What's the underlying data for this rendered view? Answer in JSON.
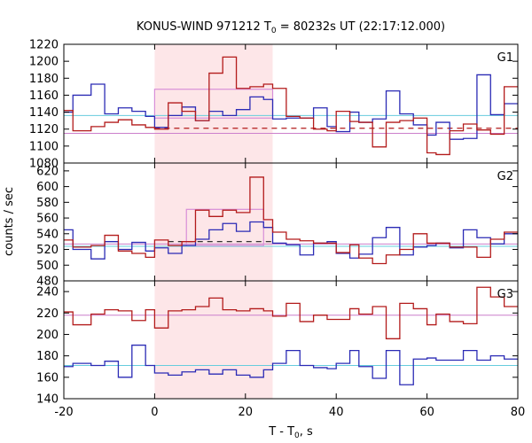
{
  "chart_data": {
    "type": "line",
    "title": "KONUS-WIND 971212 T",
    "title_sub": "0",
    "title_rest": " = 80232s UT (22:17:12.000)",
    "xlabel": "T - T",
    "xlabel_sub": "0",
    "xlabel_rest": ", s",
    "ylabel": "counts / sec",
    "xlim": [
      -20,
      80
    ],
    "x_ticks": [
      -20,
      0,
      20,
      40,
      60,
      80
    ],
    "highlight_interval": [
      0,
      26
    ],
    "bin_edges": [
      -20,
      -18,
      -14,
      -11,
      -8,
      -5,
      -2,
      0,
      3,
      6,
      9,
      12,
      15,
      18,
      21,
      24,
      26,
      29,
      32,
      35,
      38,
      40,
      43,
      45,
      48,
      51,
      54,
      57,
      60,
      62,
      65,
      68,
      71,
      74,
      77,
      80
    ],
    "panels": [
      {
        "label": "G1",
        "ylim": [
          1080,
          1220
        ],
        "y_ticks": [
          1080,
          1100,
          1120,
          1140,
          1160,
          1180,
          1200,
          1220
        ],
        "series": [
          {
            "color": "#2b2bb5",
            "values": [
              1140,
              1160,
              1173,
              1138,
              1145,
              1141,
              1135,
              1122,
              1136,
              1146,
              1130,
              1141,
              1136,
              1143,
              1158,
              1155,
              1132,
              1133,
              1133,
              1145,
              1123,
              1117,
              1140,
              1128,
              1132,
              1165,
              1138,
              1125,
              1113,
              1128,
              1108,
              1109,
              1184,
              1137,
              1150
            ]
          },
          {
            "color": "#b31b1b",
            "values": [
              1142,
              1118,
              1123,
              1128,
              1131,
              1125,
              1122,
              1120,
              1151,
              1141,
              1130,
              1186,
              1205,
              1168,
              1170,
              1173,
              1168,
              1135,
              1133,
              1120,
              1118,
              1141,
              1129,
              1128,
              1099,
              1128,
              1130,
              1133,
              1092,
              1090,
              1118,
              1126,
              1119,
              1114,
              1170
            ]
          }
        ],
        "bg_levels": [
          {
            "color": "#66ccdd",
            "value": 1136
          },
          {
            "color": "#cc7fcc",
            "value": 1115
          }
        ],
        "signal_boxes": [
          {
            "color": "#d88fd8",
            "x0": 0,
            "x1": 26,
            "y0": 1133,
            "y1": 1167
          }
        ],
        "dashed_level": {
          "color": "#b31b1b",
          "x0": 0,
          "x1": 80,
          "value": 1121
        }
      },
      {
        "label": "G2",
        "ylim": [
          480,
          630
        ],
        "y_ticks": [
          480,
          500,
          520,
          540,
          560,
          580,
          600,
          620
        ],
        "series": [
          {
            "color": "#2b2bb5",
            "values": [
              545,
              520,
              508,
              530,
              520,
              529,
              518,
              522,
              515,
              525,
              533,
              545,
              553,
              543,
              555,
              548,
              528,
              526,
              513,
              528,
              530,
              515,
              509,
              514,
              535,
              548,
              513,
              523,
              525,
              528,
              522,
              545,
              535,
              527,
              540
            ]
          },
          {
            "color": "#b31b1b",
            "values": [
              532,
              523,
              525,
              538,
              518,
              515,
              510,
              532,
              525,
              530,
              570,
              562,
              570,
              567,
              612,
              558,
              542,
              533,
              531,
              528,
              528,
              516,
              526,
              509,
              502,
              513,
              520,
              540,
              528,
              528,
              523,
              523,
              510,
              533,
              542
            ]
          }
        ],
        "bg_levels": [
          {
            "color": "#66ccdd",
            "value": 524
          },
          {
            "color": "#cc7fcc",
            "value": 527
          }
        ],
        "signal_boxes": [
          {
            "color": "#d88fd8",
            "x0": 7,
            "x1": 24,
            "y0": 525,
            "y1": 571
          }
        ],
        "dashed_level": {
          "color": "#1a1a1a",
          "x0": 3,
          "x1": 26,
          "value": 530
        }
      },
      {
        "label": "G3",
        "ylim": [
          140,
          250
        ],
        "y_ticks": [
          140,
          160,
          180,
          200,
          220,
          240
        ],
        "series": [
          {
            "color": "#2b2bb5",
            "values": [
              170,
              173,
              171,
              175,
              160,
              190,
              171,
              164,
              162,
              165,
              167,
              163,
              167,
              162,
              160,
              167,
              173,
              185,
              171,
              169,
              168,
              173,
              185,
              170,
              159,
              185,
              153,
              177,
              178,
              176,
              176,
              185,
              176,
              180,
              177
            ]
          },
          {
            "color": "#b31b1b",
            "values": [
              221,
              209,
              219,
              223,
              222,
              213,
              223,
              206,
              222,
              223,
              226,
              234,
              223,
              222,
              224,
              222,
              217,
              229,
              212,
              218,
              214,
              214,
              224,
              219,
              226,
              196,
              229,
              224,
              209,
              219,
              212,
              210,
              244,
              235,
              226
            ]
          }
        ],
        "bg_levels": [
          {
            "color": "#66ccdd",
            "value": 171
          },
          {
            "color": "#cc7fcc",
            "value": 218
          }
        ],
        "signal_boxes": [],
        "dashed_level": null
      }
    ]
  }
}
